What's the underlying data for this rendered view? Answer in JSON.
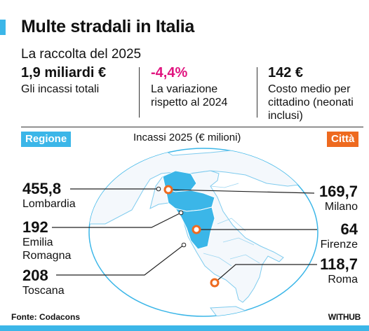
{
  "header": {
    "title": "Multe stradali in Italia",
    "subtitle": "La raccolta del 2025"
  },
  "stats": [
    {
      "value": "1,9 miliardi €",
      "label": "Gli incassi totali"
    },
    {
      "value": "-4,4%",
      "label": "La variazione rispetto al 2024"
    },
    {
      "value": "142 €",
      "label": "Costo medio per cittadino (neonati inclusi)"
    }
  ],
  "map": {
    "tag_left": "Regione",
    "tag_right": "Città",
    "title": "Incassi 2025 (€ milioni)",
    "regions": [
      {
        "value": "455,8",
        "name": "Lombardia"
      },
      {
        "value": "192",
        "name": "Emilia Romagna"
      },
      {
        "value": "208",
        "name": "Toscana"
      }
    ],
    "cities": [
      {
        "value": "169,7",
        "name": "Milano"
      },
      {
        "value": "64",
        "name": "Firenze"
      },
      {
        "value": "118,7",
        "name": "Roma"
      }
    ],
    "colors": {
      "highlight": "#3bb6e8",
      "ocean": "#ffffff",
      "land": "#f4f8fc",
      "city_marker": "#ee6a1f"
    }
  },
  "footer": {
    "source": "Fonte: Codacons",
    "brand": "WITHUB"
  }
}
